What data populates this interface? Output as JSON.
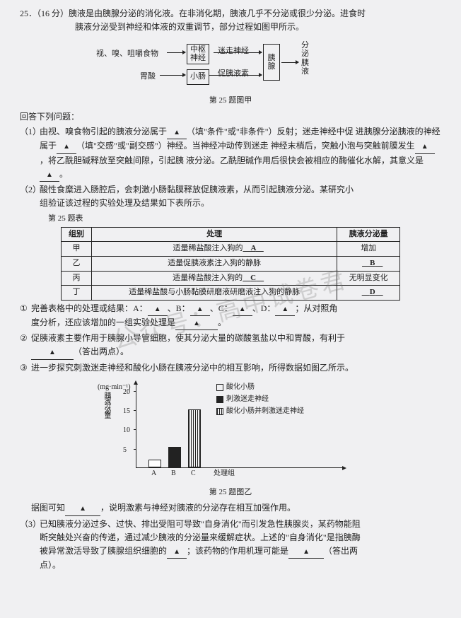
{
  "q": {
    "num": "25．（16 分）",
    "lead1": "胰液是由胰腺分泌的消化液。在非消化期，胰液几乎不分泌或很少分泌。进食时",
    "lead2": "胰液分泌受到神经和体液的双重调节，部分过程如图甲所示。"
  },
  "diagram": {
    "left1": "视、嗅、咀嚼食物",
    "left2": "胃酸",
    "box1": "中枢\n神经",
    "box2": "小肠",
    "mid1": "迷走神经",
    "mid2": "促胰液素",
    "box3": "胰\n腺",
    "right": "分\n泌\n胰\n液",
    "caption": "第 25 题图甲"
  },
  "answer_lead": "回答下列问题：",
  "p1": {
    "n": "（1）",
    "t1": "由视、嗅食物引起的胰液分泌属于",
    "t2": "（填\"条件\"或\"非条件\"）反射；迷走神经中促",
    "t3": "进胰腺分泌胰液的神经属于",
    "t4": "（填\"交感\"或\"副交感\"）神经。当神经冲动传到迷走",
    "t5": "神经末梢后，突触小泡与突触前膜发生",
    "t6": "，将乙酰胆碱释放至突触间隙，引起胰",
    "t7": "液分泌。乙酰胆碱作用后很快会被相应的酶催化水解，其意义是",
    "t8": "。"
  },
  "p2": {
    "n": "（2）",
    "t1": "酸性食糜进入肠腔后，会刺激小肠黏膜释放促胰液素，从而引起胰液分泌。某研究小",
    "t2": "组验证该过程的实验处理及结果如下表所示。"
  },
  "tbl_cap": "第 25 题表",
  "table": {
    "h1": "组别",
    "h2": "处理",
    "h3": "胰液分泌量",
    "r1c1": "甲",
    "r1c2a": "适量稀盐酸注入狗的",
    "r1c2b": "A",
    "r1c3": "增加",
    "r2c1": "乙",
    "r2c2": "适量促胰液素注入狗的静脉",
    "r2c3b": "B",
    "r3c1": "丙",
    "r3c2a": "适量稀盐酸注入狗的",
    "r3c2b": "C",
    "r3c3": "无明显变化",
    "r4c1": "丁",
    "r4c2": "适量稀盐酸与小肠黏膜研磨液研磨液注入狗的静脉",
    "r4c3b": "D"
  },
  "c1": {
    "n": "①",
    "t1": "完善表格中的处理或结果：A：",
    "t2": "、B：",
    "t3": "、C：",
    "t4": "、D：",
    "t5": "；从对照角",
    "t6": "度分析，还应该增加的一组实验处理是",
    "t7": "。"
  },
  "c2": {
    "n": "②",
    "t1": "促胰液素主要作用于胰腺小导管细胞，使其分泌大量的碳酸氢盐以中和胃酸，有利于",
    "t2": "（答出两点）。"
  },
  "c3": {
    "n": "③",
    "t": "进一步探究刺激迷走神经和酸化小肠在胰液分泌中的相互影响，所得数据如图乙所示。"
  },
  "chart": {
    "ylabel": "胰液分泌量",
    "yunit": "(mg·min⁻¹)",
    "legend": [
      "酸化小肠",
      "刺激迷走神经",
      "酸化小肠并刺激迷走神经"
    ],
    "xlabels": [
      "A",
      "B",
      "C",
      "处理组"
    ],
    "yticks": [
      5,
      10,
      15,
      20
    ],
    "bars": [
      {
        "label": "A",
        "value": 2,
        "fill": "white"
      },
      {
        "label": "B",
        "value": 5.2,
        "fill": "black"
      },
      {
        "label": "C",
        "value": 15,
        "fill": "hatch"
      }
    ],
    "ymax": 22,
    "caption": "第 25 题图乙"
  },
  "after_chart": {
    "t1": "据图可知",
    "t2": "，说明激素与神经对胰液的分泌存在相互加强作用。"
  },
  "p3": {
    "n": "（3）",
    "t1": "已知胰液分泌过多、过快、排出受阻可导致\"自身消化\"而引发急性胰腺炎，某药物能阻",
    "t2": "断突触处兴奋的传递，通过减少胰液的分泌量来缓解症状。上述的\"自身消化\"是指胰酶",
    "t3": "被异常激活导致了胰腺组织细胞的",
    "t4": "；该药物的作用机理可能是",
    "t5": "（答出两",
    "t6": "点）。"
  }
}
